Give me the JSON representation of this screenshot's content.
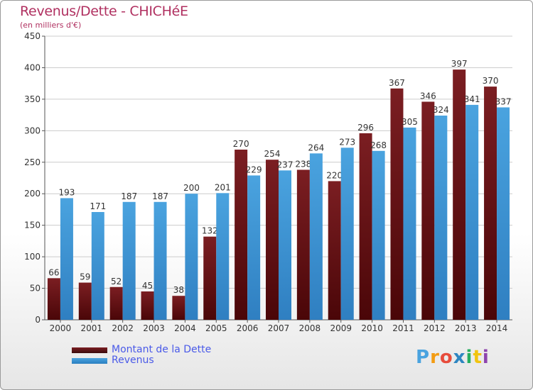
{
  "title": "Revenus/Dette - CHICHéE",
  "subtitle": "(en milliers d'€)",
  "logo_text": "Proxiti",
  "colors": {
    "dette": "#7b1e22",
    "revenus": "#4aa3df",
    "title": "#b03060",
    "legend_text": "#4a5ae8"
  },
  "chart_data": {
    "type": "bar",
    "categories": [
      "2000",
      "2001",
      "2002",
      "2003",
      "2004",
      "2005",
      "2006",
      "2007",
      "2008",
      "2009",
      "2010",
      "2011",
      "2012",
      "2013",
      "2014"
    ],
    "series": [
      {
        "name": "Montant de la Dette",
        "values": [
          66,
          59,
          52,
          45,
          38,
          132,
          270,
          254,
          238,
          220,
          296,
          367,
          346,
          397,
          370
        ]
      },
      {
        "name": "Revenus",
        "values": [
          193,
          171,
          187,
          187,
          200,
          201,
          229,
          237,
          264,
          273,
          268,
          305,
          324,
          341,
          337
        ]
      }
    ],
    "ylim": [
      0,
      450
    ],
    "yticks": [
      0,
      50,
      100,
      150,
      200,
      250,
      300,
      350,
      400,
      450
    ],
    "grid": true,
    "legend": "bottom-left"
  }
}
